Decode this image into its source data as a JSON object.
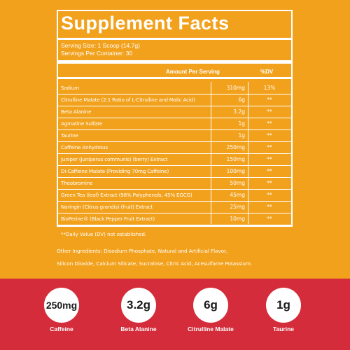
{
  "title": "Supplement Facts",
  "serving_size": "Serving Size: 1 Scoop (14.7g)",
  "servings_per_container": "Servings Per Container: 30",
  "header": {
    "amount": "Amount Per Serving",
    "dv": "%DV"
  },
  "rows": [
    {
      "name": "Sodium",
      "amount": "310mg",
      "dv": "13%"
    },
    {
      "name": "Citrulline Malate (2:1 Ratio of L-Citrulline and Malic Acid)",
      "amount": "6g",
      "dv": "**"
    },
    {
      "name": "Beta Alanine",
      "amount": "3.2g",
      "dv": "**"
    },
    {
      "name": "Agmatine Sulfate",
      "amount": "1g",
      "dv": "**"
    },
    {
      "name": "Taurine",
      "amount": "1g",
      "dv": "**"
    },
    {
      "name": "Caffeine Anhydrous",
      "amount": "250mg",
      "dv": "**"
    },
    {
      "name": "Juniper (Juniperus communis) (berry) Extract",
      "amount": "150mg",
      "dv": "**"
    },
    {
      "name": "Di-Caffeine Malate (Providing 70mg Caffeine)",
      "amount": "100mg",
      "dv": "**"
    },
    {
      "name": "Theobromine",
      "amount": "50mg",
      "dv": "**"
    },
    {
      "name": "Green Tea (leaf) Extract (98% Polyphenols, 45% EGCG)",
      "amount": "45mg",
      "dv": "**"
    },
    {
      "name": "Naringin (Citrus grandis) (fruit) Extract",
      "amount": "25mg",
      "dv": "**"
    },
    {
      "name": "BioPerine® (Black Pepper Fruit Extract)",
      "amount": "10mg",
      "dv": "**"
    }
  ],
  "footnote": "**Daily Value (DV) not established.",
  "other_ingredients_line1": "Other Ingredients: Disodium Phosphate, Natural and Artificial Flavor,",
  "other_ingredients_line2": "Silicon Dioxide, Calcium Silicate, Sucralose, Citric Acid, Acesulfame Potassium.",
  "badges": [
    {
      "value": "250mg",
      "label": "Caffeine"
    },
    {
      "value": "3.2g",
      "label": "Beta Alanine"
    },
    {
      "value": "6g",
      "label": "Citrulline Malate"
    },
    {
      "value": "1g",
      "label": "Taurine"
    }
  ],
  "colors": {
    "background": "#f2a11c",
    "band": "#d42c3a",
    "text": "#ffffff"
  }
}
